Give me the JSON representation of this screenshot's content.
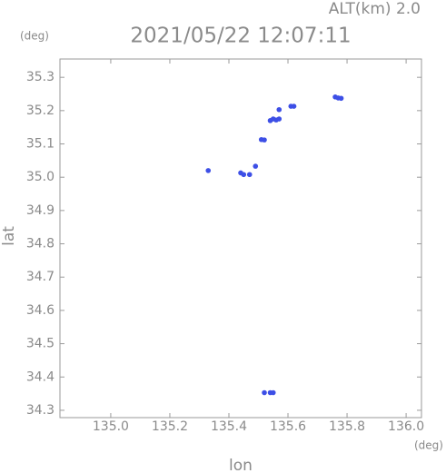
{
  "chart_data": {
    "type": "scatter",
    "title": "2021/05/22 12:07:11",
    "annotation": "ALT(km) 2.0",
    "xlabel": "lon",
    "ylabel": "lat",
    "xunit": "(deg)",
    "yunit": "(deg)",
    "color": "#3d4fe6",
    "x": [
      135.33,
      135.44,
      135.45,
      135.47,
      135.49,
      135.51,
      135.52,
      135.54,
      135.55,
      135.56,
      135.57,
      135.57,
      135.61,
      135.62,
      135.76,
      135.77,
      135.78,
      135.52,
      135.54,
      135.55
    ],
    "y": [
      35.02,
      35.013,
      35.008,
      35.008,
      35.033,
      35.113,
      35.112,
      35.17,
      35.175,
      35.172,
      35.175,
      35.203,
      35.213,
      35.213,
      35.241,
      35.238,
      35.237,
      34.353,
      34.353,
      34.353
    ],
    "xlim": [
      134.828,
      136.052
    ],
    "ylim": [
      34.278,
      35.355
    ],
    "xticks": [
      {
        "value": 135.0,
        "label": "135.0"
      },
      {
        "value": 135.2,
        "label": "135.2"
      },
      {
        "value": 135.4,
        "label": "135.4"
      },
      {
        "value": 135.6,
        "label": "135.6"
      },
      {
        "value": 135.8,
        "label": "135.8"
      },
      {
        "value": 136.0,
        "label": "136.0"
      }
    ],
    "yticks": [
      {
        "value": 34.3,
        "label": "34.3"
      },
      {
        "value": 34.4,
        "label": "34.4"
      },
      {
        "value": 34.5,
        "label": "34.5"
      },
      {
        "value": 34.6,
        "label": "34.6"
      },
      {
        "value": 34.7,
        "label": "34.7"
      },
      {
        "value": 34.8,
        "label": "34.8"
      },
      {
        "value": 34.9,
        "label": "34.9"
      },
      {
        "value": 35.0,
        "label": "35.0"
      },
      {
        "value": 35.1,
        "label": "35.1"
      },
      {
        "value": 35.2,
        "label": "35.2"
      },
      {
        "value": 35.3,
        "label": "35.3"
      }
    ]
  }
}
